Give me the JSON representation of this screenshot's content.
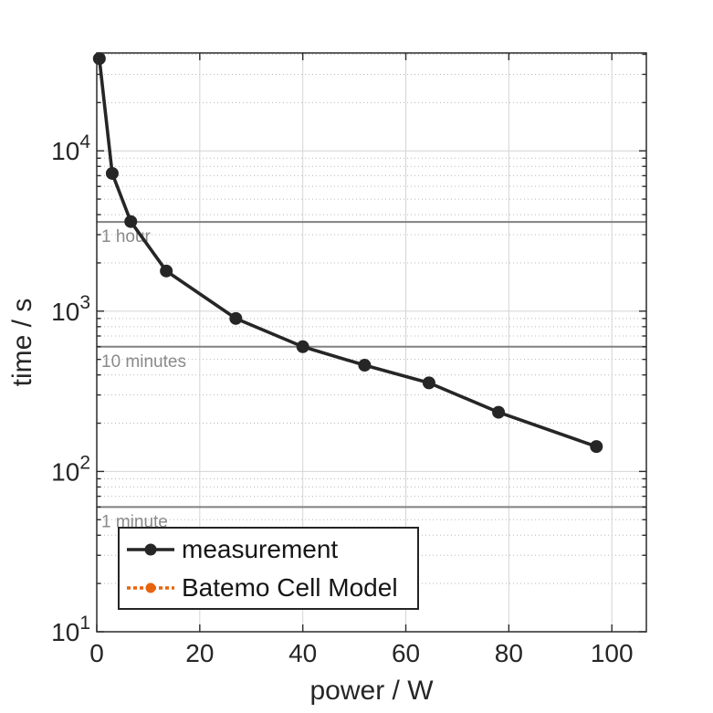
{
  "figure": {
    "background": "#ffffff",
    "text_color": "#262626"
  },
  "chart_data": {
    "type": "line",
    "title": "",
    "xlabel": "power / W",
    "ylabel": "time / s",
    "x_axis": {
      "min": 0,
      "max": 106.7,
      "ticks": [
        0,
        20,
        40,
        60,
        80,
        100
      ]
    },
    "y_axis": {
      "scale": "log",
      "min": 10,
      "max": 40800,
      "ticks": [
        10,
        100,
        1000,
        10000
      ],
      "tick_labels": [
        "10^1",
        "10^2",
        "10^3",
        "10^4"
      ]
    },
    "grid": {
      "major": true,
      "minor": true,
      "major_color": "#d4d4d4",
      "minor_color": "#b8b8b8"
    },
    "series": [
      {
        "name": "measurement",
        "color": "#262626",
        "line_style": "solid",
        "marker": "circle",
        "x": [
          0.5,
          3,
          6.6,
          13.5,
          27,
          40,
          52,
          64.5,
          78,
          97
        ],
        "y": [
          37600,
          7230,
          3620,
          1780,
          900,
          600,
          460,
          357,
          234,
          143
        ]
      },
      {
        "name": "Batemo Cell Model",
        "color": "#e8640c",
        "line_style": "dotted",
        "marker": "circle",
        "x": [],
        "y": []
      }
    ],
    "reference_lines": [
      {
        "label": "1 hour",
        "value_s": 3600,
        "color": "#818181",
        "label_color": "#8a8a8a"
      },
      {
        "label": "10 minutes",
        "value_s": 600,
        "color": "#818181",
        "label_color": "#8a8a8a"
      },
      {
        "label": "1 minute",
        "value_s": 60,
        "color": "#818181",
        "label_color": "#8a8a8a"
      }
    ],
    "legend": {
      "position": "inside bottom-left",
      "entries": [
        "measurement",
        "Batemo Cell Model"
      ]
    }
  }
}
